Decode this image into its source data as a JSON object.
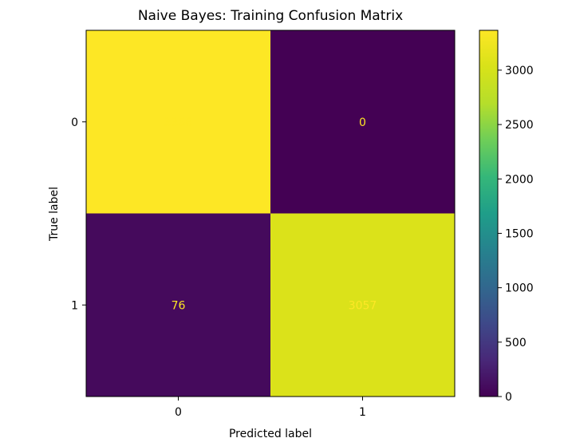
{
  "chart_data": {
    "type": "heatmap",
    "title": "Naive Bayes: Training Confusion Matrix",
    "xlabel": "Predicted label",
    "ylabel": "True label",
    "x_categories": [
      "0",
      "1"
    ],
    "y_categories": [
      "0",
      "1"
    ],
    "matrix": [
      [
        3366,
        0
      ],
      [
        76,
        3057
      ]
    ],
    "colormap": "viridis",
    "color_range": [
      0,
      3366
    ],
    "colorbar_ticks": [
      0,
      500,
      1000,
      1500,
      2000,
      2500,
      3000
    ],
    "text_color": "#fde725",
    "grid": false
  }
}
